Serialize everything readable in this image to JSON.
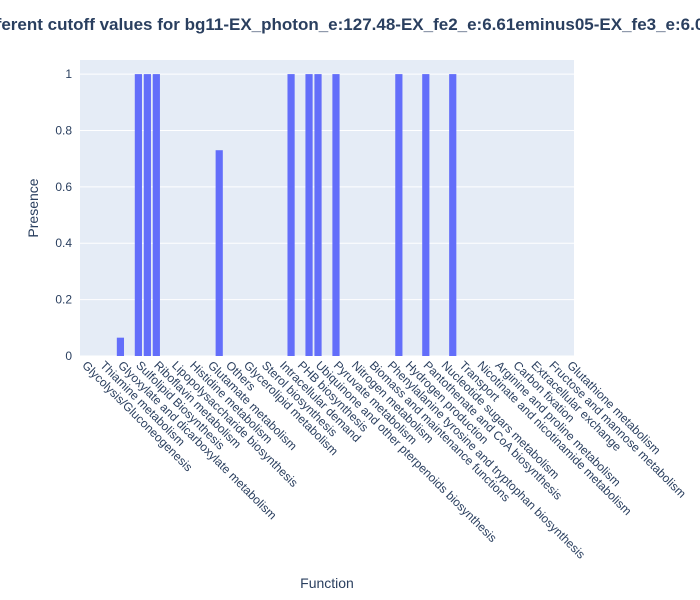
{
  "chart_data": {
    "type": "bar",
    "title": "ferent cutoff values for bg11-EX_photon_e:127.48-EX_fe2_e:6.61eminus05-EX_fe3_e:6.0",
    "x_label": "Function",
    "y_label": "Presence",
    "categories": [
      "Glycolysis/Gluconeogenesis",
      null,
      "Thiamine metabolism",
      null,
      "Glyoxylate and dicarboxylate metabolism",
      null,
      "Sulfolipid Biosynthesis",
      null,
      "Riboflavin metabolism",
      null,
      "Lipopolysaccharide biosynthesis",
      null,
      "Histidine metabolism",
      null,
      "Glutamate metabolism",
      null,
      "Others",
      null,
      "Glycerolipid metabolism",
      null,
      "Sterol biosynthesis",
      null,
      "Intracellular demand",
      null,
      "PHB biosynthesis",
      null,
      "Ubiquinone and other pterpenoids biosynthesis",
      null,
      "Pyruvate metabolism",
      null,
      "Nitrogen metabolism",
      null,
      "Biomass and maintenance functions",
      null,
      "Phenylalanine tyrosine and tryptophan biosynthesis",
      null,
      "Hydrogen production",
      null,
      "Pantothenate and CoA biosynthesis",
      null,
      "Nucleotide sugars metabolism",
      null,
      "Transport",
      null,
      "Nicotinate and nicotinamide metabolism",
      null,
      "Arginine and proline metabolism",
      null,
      "Carbon fixation",
      null,
      "Extracellular exchange",
      null,
      "Fructose and mannose metabolism",
      null,
      "Glutathione metabolism"
    ],
    "values": [
      0,
      0,
      0,
      0,
      0.065,
      0,
      1,
      1,
      1,
      0,
      0,
      0,
      0,
      0,
      0,
      0.73,
      0,
      0,
      0,
      0,
      0,
      0,
      0,
      1,
      0,
      1,
      1,
      0,
      1,
      0,
      0,
      0,
      0,
      0,
      0,
      1,
      0,
      0,
      1,
      0,
      0,
      1,
      0,
      0,
      0,
      0,
      0,
      0,
      0,
      0,
      0,
      0,
      0,
      0,
      0
    ],
    "color": "#636efa",
    "ylim": [
      0,
      1.05
    ],
    "yticks": [
      0,
      0.2,
      0.4,
      0.6,
      0.8,
      1
    ],
    "grid": true
  }
}
